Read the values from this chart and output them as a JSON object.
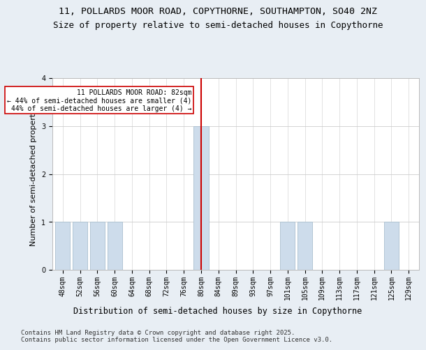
{
  "title_line1": "11, POLLARDS MOOR ROAD, COPYTHORNE, SOUTHAMPTON, SO40 2NZ",
  "title_line2": "Size of property relative to semi-detached houses in Copythorne",
  "xlabel": "Distribution of semi-detached houses by size in Copythorne",
  "ylabel": "Number of semi-detached properties",
  "categories": [
    "48sqm",
    "52sqm",
    "56sqm",
    "60sqm",
    "64sqm",
    "68sqm",
    "72sqm",
    "76sqm",
    "80sqm",
    "84sqm",
    "89sqm",
    "93sqm",
    "97sqm",
    "101sqm",
    "105sqm",
    "109sqm",
    "113sqm",
    "117sqm",
    "121sqm",
    "125sqm",
    "129sqm"
  ],
  "values": [
    1,
    1,
    1,
    1,
    0,
    0,
    0,
    0,
    3,
    0,
    0,
    0,
    0,
    1,
    1,
    0,
    0,
    0,
    0,
    1,
    0
  ],
  "bar_color": "#cddceb",
  "bar_edgecolor": "#aabfcf",
  "ref_line_index": 8,
  "ref_line_color": "#cc0000",
  "annotation_title": "11 POLLARDS MOOR ROAD: 82sqm",
  "annotation_line1": "← 44% of semi-detached houses are smaller (4)",
  "annotation_line2": "44% of semi-detached houses are larger (4) →",
  "annotation_box_color": "#ffffff",
  "annotation_box_edgecolor": "#cc0000",
  "ylim": [
    0,
    4
  ],
  "yticks": [
    0,
    1,
    2,
    3,
    4
  ],
  "background_color": "#e8eef4",
  "plot_background": "#ffffff",
  "footer": "Contains HM Land Registry data © Crown copyright and database right 2025.\nContains public sector information licensed under the Open Government Licence v3.0.",
  "title_fontsize": 9.5,
  "subtitle_fontsize": 9,
  "ylabel_fontsize": 8,
  "xlabel_fontsize": 8.5,
  "tick_fontsize": 7,
  "footer_fontsize": 6.5,
  "ann_fontsize": 7
}
